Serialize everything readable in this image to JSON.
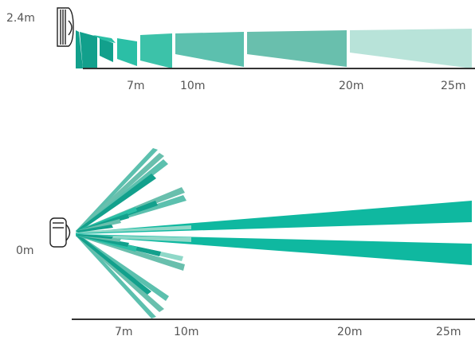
{
  "side_view": {
    "height_label": "2.4m",
    "distance_labels": [
      "7m",
      "10m",
      "20m",
      "25m"
    ]
  },
  "top_view": {
    "height_label": "0m",
    "distance_labels": [
      "7m",
      "10m",
      "20m",
      "25m"
    ]
  },
  "colors": {
    "dark_teal": "#12a08c",
    "teal": "#2bbfa6",
    "mid_teal": "#5cc0ae",
    "muted_teal": "#69bfad",
    "pale_teal": "#b8e3d9",
    "bright_teal": "#0fb8a0",
    "axis": "#333333",
    "label": "#555555"
  },
  "icons": {
    "sensor_side": "motion-sensor-side-icon",
    "sensor_top": "motion-sensor-top-icon"
  }
}
